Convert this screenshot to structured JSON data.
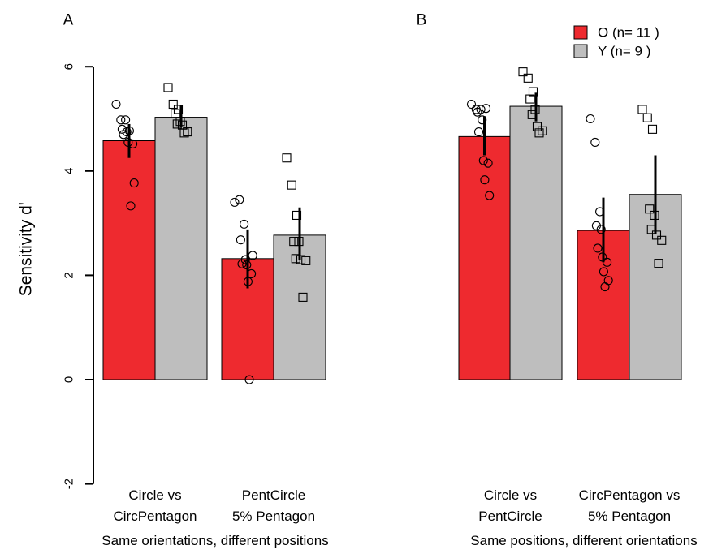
{
  "chart_data": {
    "type": "bar",
    "ylabel": "Sensitivity d'",
    "ylim": [
      -2,
      6
    ],
    "yticks": [
      -2,
      0,
      2,
      4,
      6
    ],
    "grid": false,
    "legend": {
      "placement": "top-right",
      "entries": [
        {
          "key": "O",
          "label": "O (n= 11 )",
          "color": "#EE2A2F"
        },
        {
          "key": "Y",
          "label": "Y (n= 9 )",
          "color": "#BEBEBE"
        }
      ]
    },
    "panels": [
      {
        "label": "A",
        "xlabel": "Same orientations, different positions",
        "groups": [
          {
            "line1": "Circle vs",
            "line2": "CircPentagon",
            "bars": [
              {
                "series": "O",
                "value": 4.58,
                "err": [
                  4.25,
                  4.9
                ],
                "points": [
                  5.28,
                  4.98,
                  4.98,
                  4.8,
                  4.75,
                  4.7,
                  4.55,
                  4.52,
                  4.77,
                  3.77,
                  3.33
                ]
              },
              {
                "series": "Y",
                "value": 5.03,
                "err": [
                  4.85,
                  5.25
                ],
                "points": [
                  5.6,
                  5.28,
                  5.18,
                  5.1,
                  4.95,
                  4.9,
                  4.88,
                  4.75,
                  4.73
                ]
              }
            ]
          },
          {
            "line1": "PentCircle",
            "line2": "5% Pentagon",
            "bars": [
              {
                "series": "O",
                "value": 2.32,
                "err": [
                  1.75,
                  2.88
                ],
                "points": [
                  3.4,
                  3.45,
                  2.98,
                  2.68,
                  2.3,
                  2.22,
                  2.2,
                  2.03,
                  1.88,
                  2.38,
                  0.0
                ]
              },
              {
                "series": "Y",
                "value": 2.77,
                "err": [
                  2.3,
                  3.3
                ],
                "points": [
                  4.25,
                  3.73,
                  3.15,
                  2.65,
                  2.65,
                  2.32,
                  2.3,
                  2.28,
                  1.58
                ]
              }
            ]
          }
        ]
      },
      {
        "label": "B",
        "xlabel": "Same positions, different orientations",
        "groups": [
          {
            "line1": "Circle vs",
            "line2": "PentCircle",
            "bars": [
              {
                "series": "O",
                "value": 4.66,
                "err": [
                  4.3,
                  5.05
                ],
                "points": [
                  5.28,
                  5.18,
                  5.18,
                  5.13,
                  4.98,
                  4.75,
                  4.2,
                  4.15,
                  3.83,
                  3.53,
                  5.2
                ]
              },
              {
                "series": "Y",
                "value": 5.24,
                "err": [
                  4.95,
                  5.5
                ],
                "points": [
                  5.9,
                  5.78,
                  5.52,
                  5.38,
                  5.18,
                  5.08,
                  4.85,
                  4.77,
                  4.73
                ]
              }
            ]
          },
          {
            "line1": "CircPentagon vs",
            "line2": "5% Pentagon",
            "bars": [
              {
                "series": "O",
                "value": 2.86,
                "err": [
                  2.25,
                  3.49
                ],
                "points": [
                  5.0,
                  4.55,
                  3.22,
                  2.95,
                  2.88,
                  2.52,
                  2.35,
                  2.25,
                  2.07,
                  1.9,
                  1.78
                ]
              },
              {
                "series": "Y",
                "value": 3.55,
                "err": [
                  2.8,
                  4.3
                ],
                "points": [
                  5.18,
                  5.02,
                  4.8,
                  3.27,
                  3.15,
                  2.88,
                  2.77,
                  2.67,
                  2.23
                ]
              }
            ]
          }
        ]
      }
    ]
  }
}
